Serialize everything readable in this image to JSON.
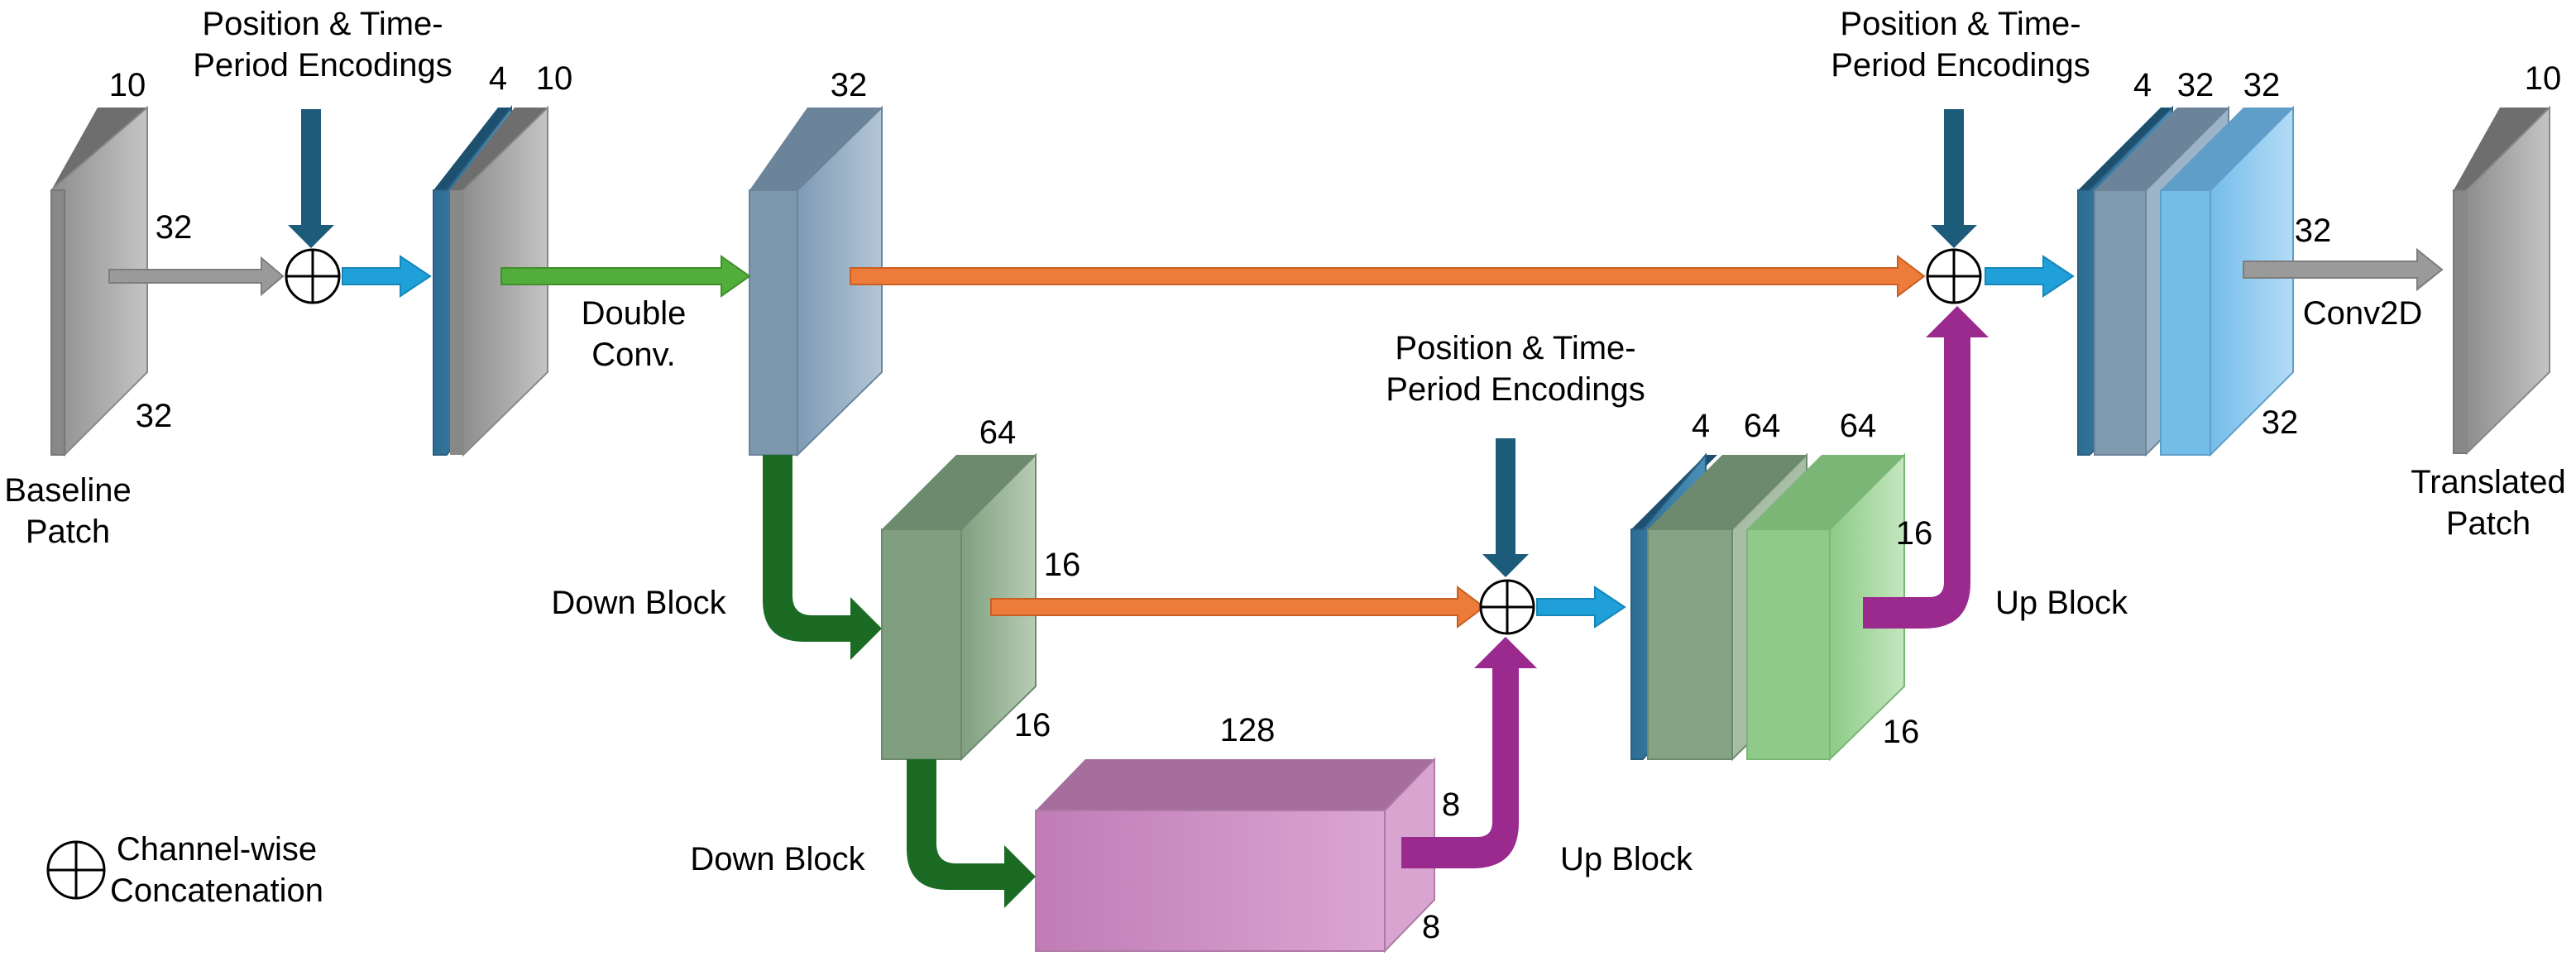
{
  "labels": {
    "pos_enc_line1": "Position & Time-",
    "pos_enc_line2": "Period Encodings",
    "baseline_line1": "Baseline",
    "baseline_line2": "Patch",
    "translated_line1": "Translated",
    "translated_line2": "Patch",
    "double_conv_line1": "Double",
    "double_conv_line2": "Conv.",
    "down_block": "Down Block",
    "up_block": "Up Block",
    "conv2d": "Conv2D",
    "legend_line1": "Channel-wise",
    "legend_line2": "Concatenation"
  },
  "dims": {
    "baseline_channels": "10",
    "baseline_size": "32",
    "enc1_channels": "4",
    "enc1_stack_channels": "10",
    "dc_channels": "32",
    "db1_channels": "64",
    "db1_size": "16",
    "bottleneck_channels": "128",
    "bottleneck_size": "8",
    "up1_enc_channels": "4",
    "up1_skip_channels": "64",
    "up1_out_channels": "64",
    "up1_size": "16",
    "up2_enc_channels": "4",
    "up2_skip_channels": "32",
    "up2_out_channels": "32",
    "up2_size": "32",
    "output_channels": "10",
    "output_size": "32"
  },
  "colors": {
    "gray_block": "#a6a6a6",
    "blue_enc": "#3a7ca5",
    "steel_block": "#8ea8bf",
    "green_block": "#8fb08f",
    "lightgreen_block": "#9fd39a",
    "pink_block": "#cc8fc4",
    "lightblue_block": "#8fc9ee",
    "orange_arrow": "#e8732f",
    "green_arrow": "#1c6b24",
    "purple_arrow": "#9b2a8f",
    "cyan_arrow": "#1fa0d8",
    "enc_arrow": "#1d5b7a"
  }
}
